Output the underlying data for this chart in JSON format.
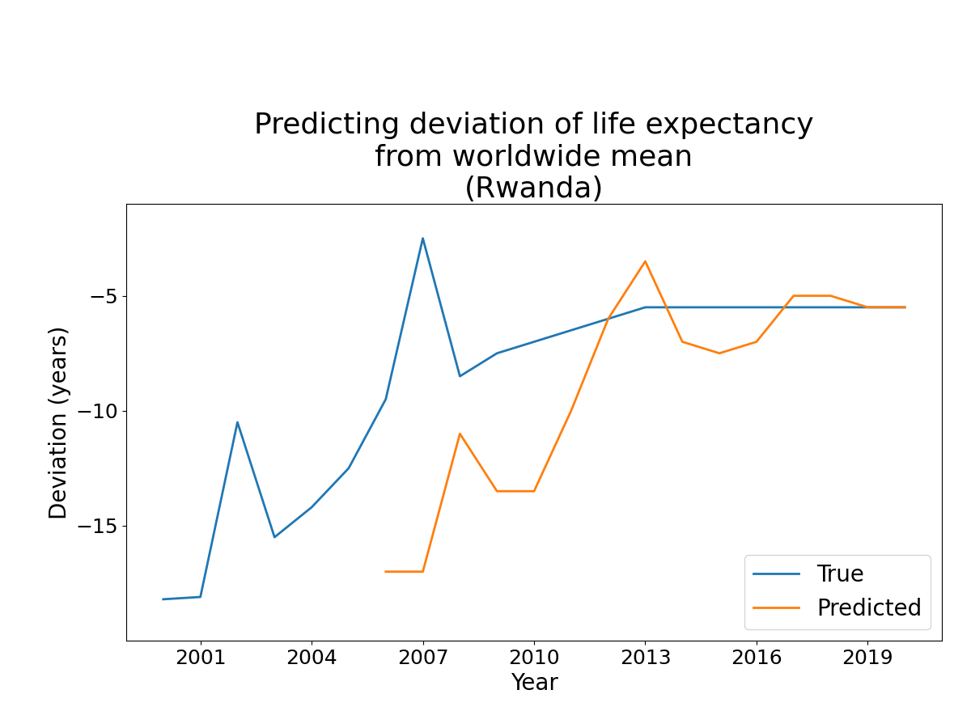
{
  "title": "Predicting deviation of life expectancy\nfrom worldwide mean\n(Rwanda)",
  "xlabel": "Year",
  "ylabel": "Deviation (years)",
  "true_years": [
    2000,
    2001,
    2002,
    2003,
    2004,
    2005,
    2006,
    2007,
    2008,
    2009,
    2010,
    2011,
    2012,
    2013,
    2014,
    2015,
    2016,
    2017,
    2018,
    2019,
    2020
  ],
  "true_values": [
    -18.2,
    -18.1,
    -10.5,
    -15.5,
    -14.2,
    -12.5,
    -9.5,
    -2.5,
    -8.5,
    -7.5,
    -7.0,
    -6.5,
    -6.0,
    -5.5,
    -5.5,
    -5.5,
    -5.5,
    -5.5,
    -5.5,
    -5.5,
    -5.5
  ],
  "pred_years": [
    2006,
    2007,
    2008,
    2009,
    2010,
    2011,
    2012,
    2013,
    2014,
    2015,
    2016,
    2017,
    2018,
    2019,
    2020
  ],
  "pred_values": [
    -17.0,
    -17.0,
    -11.0,
    -13.5,
    -13.5,
    -10.0,
    -6.0,
    -3.5,
    -7.0,
    -7.5,
    -7.0,
    -5.0,
    -5.0,
    -5.5,
    -5.5
  ],
  "true_color": "#1f77b4",
  "pred_color": "#ff7f0e",
  "true_label": "True",
  "pred_label": "Predicted",
  "title_fontsize": 26,
  "label_fontsize": 20,
  "tick_fontsize": 18,
  "legend_fontsize": 20,
  "line_width": 2.0,
  "ylim": [
    -20,
    -1
  ],
  "xlim": [
    1999.0,
    2021.0
  ],
  "xticks": [
    2001,
    2004,
    2007,
    2010,
    2013,
    2016,
    2019
  ],
  "yticks": [
    -5,
    -10,
    -15
  ],
  "ytick_labels": [
    "−5",
    "−10",
    "−15"
  ]
}
